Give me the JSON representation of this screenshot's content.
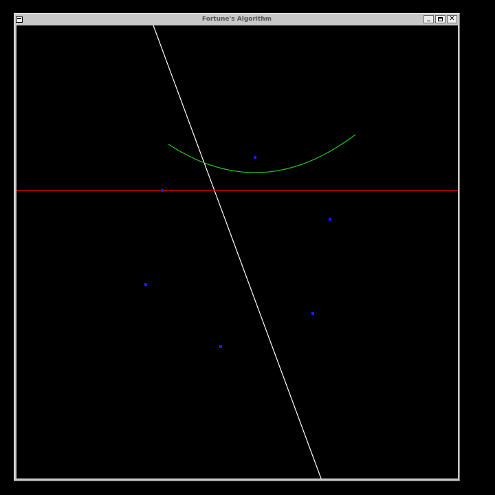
{
  "window": {
    "title": "Fortune's Algorithm",
    "buttons": {
      "minimize_icon": "minimize-icon",
      "maximize_icon": "maximize-icon",
      "close_icon": "close-icon",
      "close_glyph": "✕"
    }
  },
  "scene": {
    "colors": {
      "background": "#000000",
      "sweep_line": "#d40000",
      "beach_line": "#22cc22",
      "edge": "#ffffff",
      "site": "#1a1aff"
    },
    "sites": [
      {
        "name": "site-1"
      },
      {
        "name": "site-2"
      },
      {
        "name": "site-3"
      },
      {
        "name": "site-4"
      },
      {
        "name": "site-5"
      },
      {
        "name": "site-6"
      }
    ]
  }
}
